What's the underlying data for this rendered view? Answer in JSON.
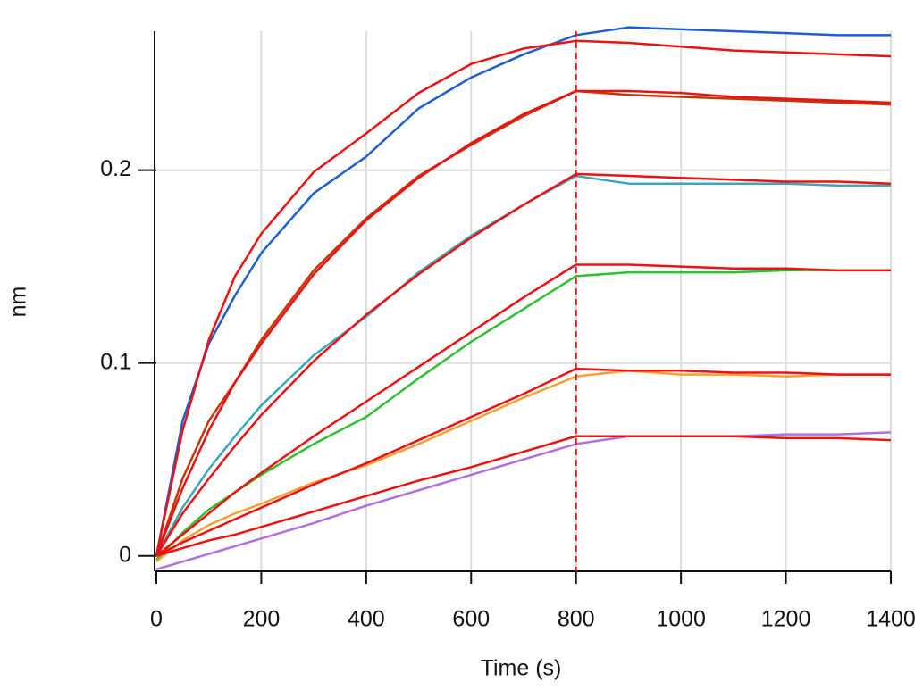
{
  "chart_data": {
    "type": "line",
    "xlabel": "Time (s)",
    "ylabel": "nm",
    "x": [
      0,
      50,
      100,
      150,
      200,
      300,
      400,
      500,
      600,
      700,
      800,
      900,
      1000,
      1100,
      1200,
      1300,
      1400
    ],
    "series": [
      {
        "color": "#1f5fd0",
        "values": [
          0,
          0.07,
          0.11,
          0.135,
          0.157,
          0.188,
          0.207,
          0.232,
          0.248,
          0.26,
          0.27,
          0.274,
          0.273,
          0.272,
          0.271,
          0.27,
          0.27
        ]
      },
      {
        "color": "#c0390b",
        "values": [
          0,
          0.04,
          0.07,
          0.09,
          0.112,
          0.148,
          0.175,
          0.197,
          0.213,
          0.228,
          0.241,
          0.239,
          0.238,
          0.237,
          0.236,
          0.235,
          0.234
        ]
      },
      {
        "color": "#3aa8b8",
        "values": [
          0,
          0.025,
          0.045,
          0.062,
          0.078,
          0.104,
          0.124,
          0.147,
          0.166,
          0.182,
          0.197,
          0.193,
          0.193,
          0.193,
          0.193,
          0.192,
          0.192
        ]
      },
      {
        "color": "#2ec02e",
        "values": [
          -0.002,
          0.012,
          0.024,
          0.033,
          0.042,
          0.058,
          0.072,
          0.092,
          0.111,
          0.128,
          0.145,
          0.147,
          0.147,
          0.147,
          0.148,
          0.148,
          0.148
        ]
      },
      {
        "color": "#f5a030",
        "values": [
          -0.003,
          0.008,
          0.016,
          0.022,
          0.027,
          0.038,
          0.047,
          0.058,
          0.07,
          0.082,
          0.093,
          0.096,
          0.094,
          0.094,
          0.093,
          0.094,
          0.094
        ]
      },
      {
        "color": "#b070e0",
        "values": [
          -0.007,
          -0.003,
          0.001,
          0.005,
          0.009,
          0.017,
          0.026,
          0.034,
          0.042,
          0.05,
          0.058,
          0.062,
          0.062,
          0.062,
          0.063,
          0.063,
          0.064
        ]
      },
      {
        "color": "#ee1111",
        "values": [
          0,
          0.065,
          0.112,
          0.145,
          0.167,
          0.199,
          0.219,
          0.24,
          0.255,
          0.263,
          0.267,
          0.266,
          0.264,
          0.262,
          0.261,
          0.26,
          0.259
        ]
      },
      {
        "color": "#ee1111",
        "values": [
          0,
          0.035,
          0.065,
          0.09,
          0.11,
          0.146,
          0.174,
          0.196,
          0.214,
          0.229,
          0.241,
          0.241,
          0.24,
          0.238,
          0.237,
          0.236,
          0.235
        ]
      },
      {
        "color": "#ee1111",
        "values": [
          0,
          0.022,
          0.04,
          0.057,
          0.073,
          0.101,
          0.125,
          0.146,
          0.165,
          0.182,
          0.198,
          0.197,
          0.196,
          0.195,
          0.194,
          0.194,
          0.193
        ]
      },
      {
        "color": "#ee1111",
        "values": [
          0,
          0.011,
          0.022,
          0.033,
          0.043,
          0.062,
          0.08,
          0.098,
          0.116,
          0.134,
          0.151,
          0.151,
          0.15,
          0.149,
          0.149,
          0.148,
          0.148
        ]
      },
      {
        "color": "#ee1111",
        "values": [
          0,
          0.007,
          0.013,
          0.019,
          0.025,
          0.037,
          0.048,
          0.06,
          0.072,
          0.084,
          0.097,
          0.096,
          0.096,
          0.095,
          0.095,
          0.094,
          0.094
        ]
      },
      {
        "color": "#ee1111",
        "values": [
          0,
          0.004,
          0.008,
          0.011,
          0.015,
          0.023,
          0.031,
          0.039,
          0.046,
          0.054,
          0.062,
          0.062,
          0.062,
          0.062,
          0.061,
          0.061,
          0.06
        ]
      }
    ],
    "xlim": [
      0,
      1400
    ],
    "xticks": [
      0,
      200,
      400,
      600,
      800,
      1000,
      1200,
      1400
    ],
    "ylim": [
      -0.008,
      0.272
    ],
    "yticks": [
      0,
      0.1,
      0.2
    ],
    "grid": true,
    "vline": {
      "value": 800,
      "color": "#ee1111"
    }
  }
}
